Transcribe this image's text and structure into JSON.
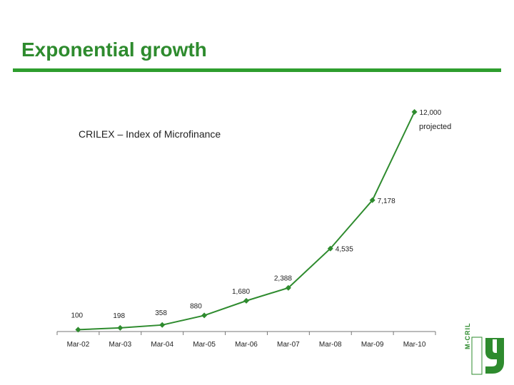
{
  "slide": {
    "title": "Exponential growth",
    "accent_color": "#2e9e2e",
    "logo": {
      "icon": "mcril-logo-icon",
      "text": "M-CRIL"
    }
  },
  "chart_data": {
    "type": "line",
    "title": "CRILEX – Index of Microfinance",
    "xlabel": "",
    "ylabel": "",
    "categories": [
      "Mar-02",
      "Mar-03",
      "Mar-04",
      "Mar-05",
      "Mar-06",
      "Mar-07",
      "Mar-08",
      "Mar-09",
      "Mar-10"
    ],
    "series": [
      {
        "values": [
          100,
          198,
          358,
          880,
          1680,
          2388,
          4535,
          7178,
          12000
        ],
        "labels": [
          "100",
          "198",
          "358",
          "880",
          "1,680",
          "2,388",
          "4,535",
          "7,178",
          "12,000"
        ],
        "color": "#2e8b2e"
      }
    ],
    "annotations": [
      {
        "category": "Mar-10",
        "text": "projected"
      }
    ],
    "ylim": [
      0,
      12000
    ],
    "grid": false,
    "legend": "none"
  }
}
